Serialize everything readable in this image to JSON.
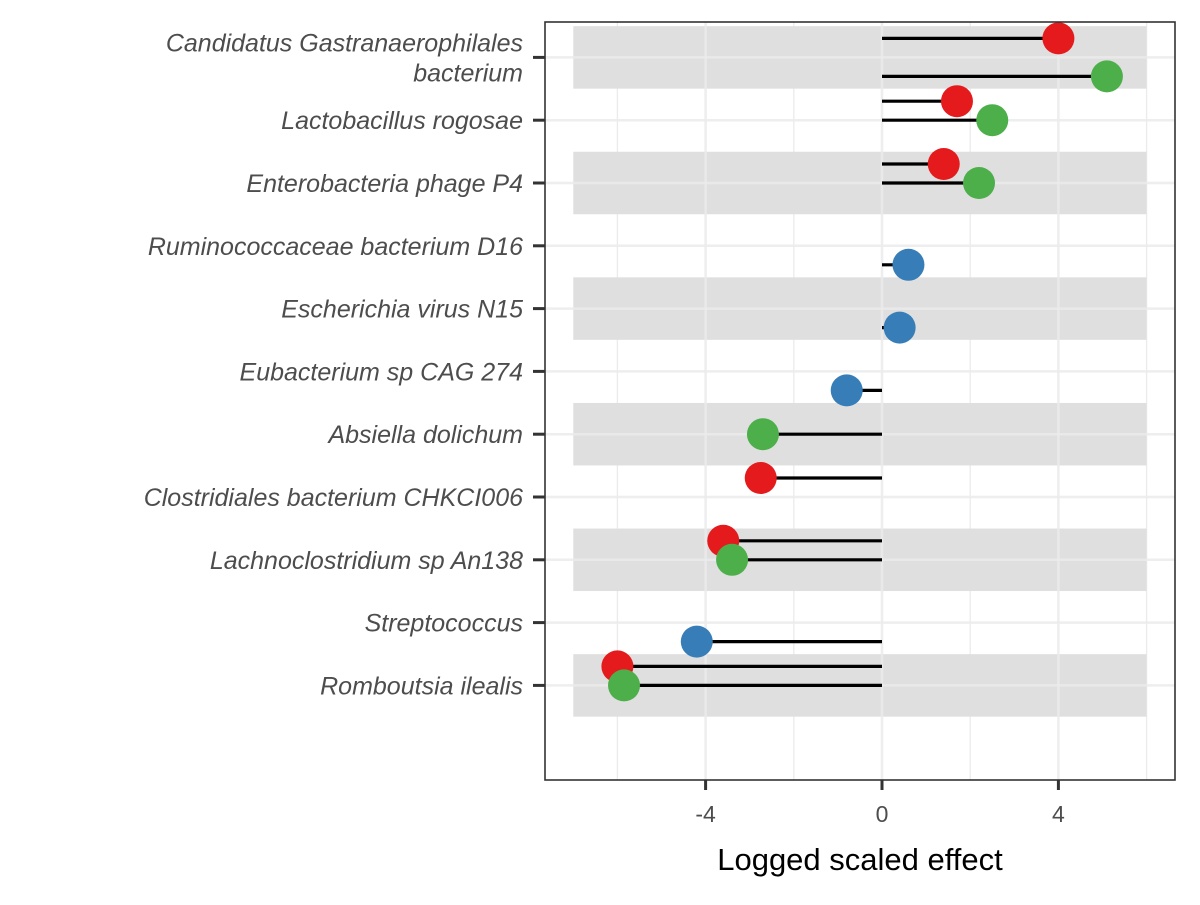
{
  "chart_data": {
    "type": "scatter",
    "subtype": "lollipop",
    "title": "",
    "xlabel": "Logged scaled effect",
    "ylabel": "",
    "xlim": [
      -7.5,
      6.0
    ],
    "x_ticks": [
      -4,
      0,
      4
    ],
    "grid": true,
    "legend": "none",
    "baseline": 0,
    "band_range": [
      -7.0,
      6.0
    ],
    "categories": [
      {
        "label": "Candidatus Gastranaerophilales bacterium",
        "label_lines": [
          "Candidatus Gastranaerophilales",
          "bacterium"
        ],
        "shaded": true,
        "points": [
          {
            "value": 4.0,
            "color": "#e41a1c",
            "offset": -1
          },
          {
            "value": 5.1,
            "color": "#4daf4a",
            "offset": 1
          }
        ]
      },
      {
        "label": "Lactobacillus rogosae",
        "label_lines": [
          "Lactobacillus rogosae"
        ],
        "shaded": false,
        "points": [
          {
            "value": 1.7,
            "color": "#e41a1c",
            "offset": -1
          },
          {
            "value": 2.5,
            "color": "#4daf4a",
            "offset": 0
          }
        ]
      },
      {
        "label": "Enterobacteria phage P4",
        "label_lines": [
          "Enterobacteria phage P4"
        ],
        "shaded": true,
        "points": [
          {
            "value": 1.4,
            "color": "#e41a1c",
            "offset": -1
          },
          {
            "value": 2.2,
            "color": "#4daf4a",
            "offset": 0
          }
        ]
      },
      {
        "label": "Ruminococcaceae bacterium D16",
        "label_lines": [
          "Ruminococcaceae bacterium D16"
        ],
        "shaded": false,
        "points": [
          {
            "value": 0.6,
            "color": "#377eb8",
            "offset": 1
          }
        ]
      },
      {
        "label": "Escherichia virus N15",
        "label_lines": [
          "Escherichia virus N15"
        ],
        "shaded": true,
        "points": [
          {
            "value": 0.4,
            "color": "#377eb8",
            "offset": 1
          }
        ]
      },
      {
        "label": "Eubacterium sp CAG 274",
        "label_lines": [
          "Eubacterium sp CAG 274"
        ],
        "shaded": false,
        "points": [
          {
            "value": -0.8,
            "color": "#377eb8",
            "offset": 1
          }
        ]
      },
      {
        "label": "Absiella dolichum",
        "label_lines": [
          "Absiella dolichum"
        ],
        "shaded": true,
        "points": [
          {
            "value": -2.7,
            "color": "#4daf4a",
            "offset": 0
          }
        ]
      },
      {
        "label": "Clostridiales bacterium CHKCI006",
        "label_lines": [
          "Clostridiales bacterium CHKCI006"
        ],
        "shaded": false,
        "points": [
          {
            "value": -2.75,
            "color": "#e41a1c",
            "offset": -1
          }
        ]
      },
      {
        "label": "Lachnoclostridium sp An138",
        "label_lines": [
          "Lachnoclostridium sp An138"
        ],
        "shaded": true,
        "points": [
          {
            "value": -3.6,
            "color": "#e41a1c",
            "offset": -1
          },
          {
            "value": -3.4,
            "color": "#4daf4a",
            "offset": 0
          }
        ]
      },
      {
        "label": "Streptococcus",
        "label_lines": [
          "Streptococcus"
        ],
        "shaded": false,
        "points": [
          {
            "value": -4.2,
            "color": "#377eb8",
            "offset": 1
          }
        ]
      },
      {
        "label": "Romboutsia ilealis",
        "label_lines": [
          "Romboutsia ilealis"
        ],
        "shaded": true,
        "points": [
          {
            "value": -6.0,
            "color": "#e41a1c",
            "offset": -1
          },
          {
            "value": -5.85,
            "color": "#4daf4a",
            "offset": 0
          }
        ]
      }
    ]
  }
}
